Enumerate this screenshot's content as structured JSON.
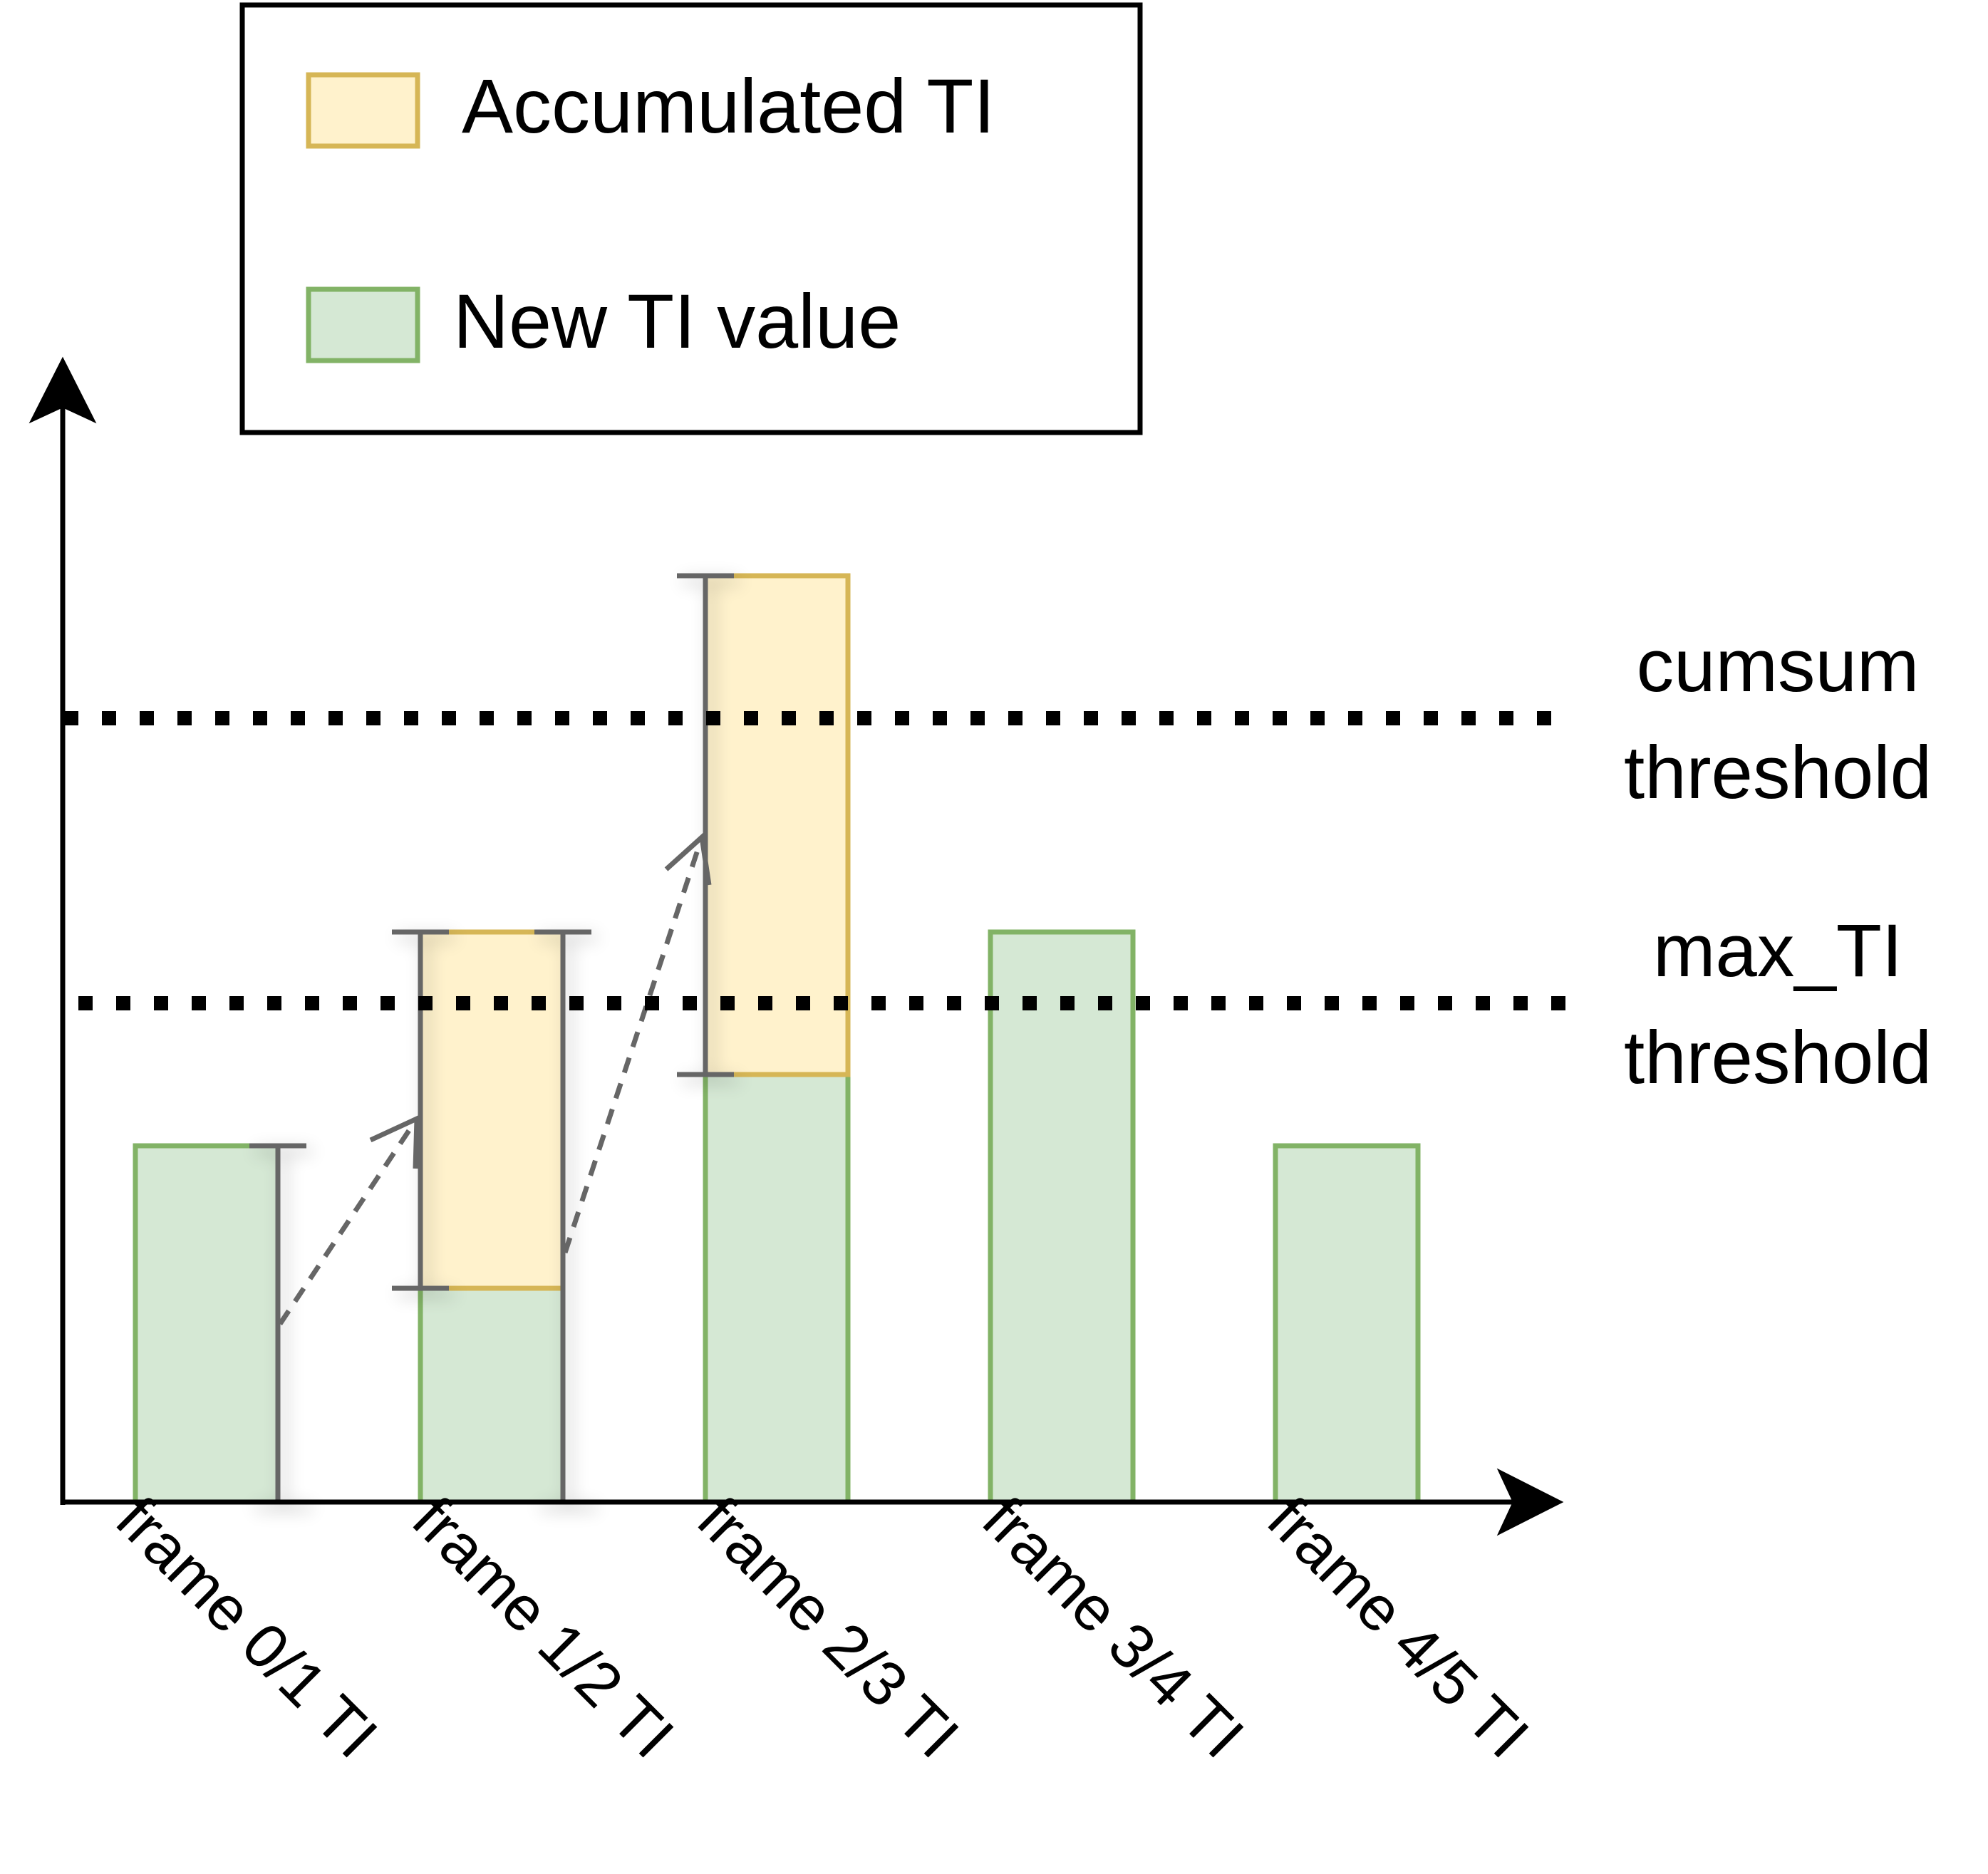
{
  "legend": {
    "items": [
      {
        "label": "Accumulated TI",
        "fill": "#fff2cc",
        "stroke": "#d6b656"
      },
      {
        "label": "New TI value",
        "fill": "#d5e8d4",
        "stroke": "#82b366"
      }
    ]
  },
  "thresholds": {
    "cumsum": {
      "line1": "cumsum",
      "line2": "threshold"
    },
    "max_ti": {
      "line1": "max_TI",
      "line2": "threshold"
    }
  },
  "frames": [
    {
      "label": "frame 0/1 TI"
    },
    {
      "label": "frame 1/2 TI"
    },
    {
      "label": "frame 2/3 TI"
    },
    {
      "label": "frame 3/4 TI"
    },
    {
      "label": "frame 4/5 TI"
    }
  ],
  "colors": {
    "axis": "#000000",
    "bracket": "#666666",
    "new_fill": "#d5e8d4",
    "new_stroke": "#82b366",
    "acc_fill": "#fff2cc",
    "acc_stroke": "#d6b656"
  }
}
